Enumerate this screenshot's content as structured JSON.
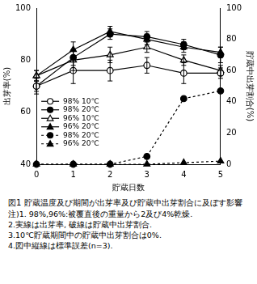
{
  "chart_data": {
    "type": "line",
    "caption": "図1 貯蔵温度及び期間が出芽率及び貯蔵中出芽割合に及ぼす影響",
    "notes": [
      "注)1. 98%,96%:被覆直後の重量から2及び4%乾燥.",
      "2.実線は出芽率, 破線は貯蔵中出芽割合.",
      "3.10℃貯蔵期間中の貯蔵中出芽割合は0%.",
      "4.図中縦線は標準誤差(n=3)."
    ],
    "x_label": "貯蔵日数",
    "y_label": "出芽率(%)",
    "y2_label": "貯蔵中出芽割合(%)",
    "x": [
      0,
      1,
      2,
      3,
      4,
      5
    ],
    "xlim": [
      0,
      5
    ],
    "xticks": [
      0,
      1,
      2,
      3,
      4,
      5
    ],
    "ylim": [
      40,
      100
    ],
    "yticks": [
      40,
      60,
      80,
      100
    ],
    "y2lim": [
      0,
      100
    ],
    "y2ticks": [
      0,
      20,
      40,
      60,
      80,
      100
    ],
    "grid": false,
    "legend": "lower left",
    "series": [
      {
        "name": "98% 10℃",
        "color": "#000000",
        "marker": "open_circle",
        "line_style": "solid",
        "values": [
          70,
          76,
          76,
          78,
          75,
          75
        ],
        "errors": [
          3,
          5,
          4,
          3,
          4,
          2
        ]
      },
      {
        "name": "98% 20℃",
        "color": "#000000",
        "marker": "filled_circle",
        "line_style": "solid",
        "values": [
          70,
          81,
          90,
          89,
          86,
          82
        ],
        "errors": [
          2,
          3,
          2,
          2,
          2,
          3
        ]
      },
      {
        "name": "96% 10℃",
        "color": "#000000",
        "marker": "open_triangle",
        "line_style": "solid",
        "values": [
          74,
          80,
          82,
          85,
          80,
          76
        ],
        "errors": [
          2,
          4,
          3,
          2,
          2,
          2
        ]
      },
      {
        "name": "96% 20℃",
        "color": "#000000",
        "marker": "filled_triangle",
        "line_style": "solid",
        "values": [
          74,
          84,
          91,
          88,
          85,
          83
        ],
        "errors": [
          2,
          3,
          2,
          2,
          2,
          2
        ]
      },
      {
        "name": "98% 20℃",
        "color": "#000000",
        "marker": "filled_circle",
        "line_style": "dashed",
        "axis": "y2",
        "values": [
          0,
          0,
          0,
          5,
          42,
          47
        ]
      },
      {
        "name": "96% 20℃",
        "color": "#000000",
        "marker": "filled_triangle",
        "line_style": "dashed",
        "axis": "y2",
        "values": [
          0,
          0,
          0,
          0,
          1,
          2
        ]
      }
    ]
  }
}
